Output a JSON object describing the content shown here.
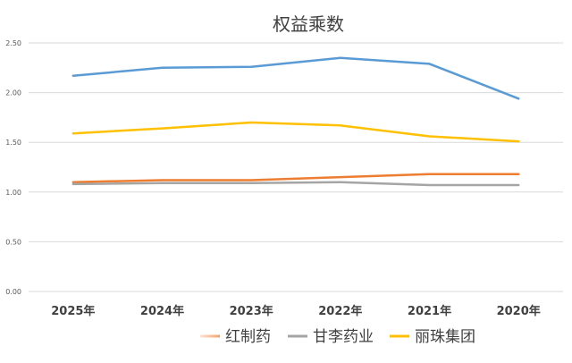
{
  "chart_data": {
    "type": "line",
    "title": "权益乘数",
    "categories": [
      "2025年",
      "2024年",
      "2023年",
      "2022年",
      "2021年",
      "2020年"
    ],
    "ylim": [
      0,
      2.5
    ],
    "yticks": [
      "0.00",
      "0.50",
      "1.00",
      "1.50",
      "2.00",
      "2.50"
    ],
    "grid": true,
    "legend_position": "bottom",
    "series": [
      {
        "name": "",
        "values": [
          2.17,
          2.25,
          2.26,
          2.35,
          2.29,
          1.94
        ],
        "color": "#5b9bd5"
      },
      {
        "name": "红制药",
        "values": [
          1.1,
          1.12,
          1.12,
          1.15,
          1.18,
          1.18
        ],
        "color": "#ed7d31"
      },
      {
        "name": "甘李药业",
        "values": [
          1.08,
          1.09,
          1.09,
          1.1,
          1.07,
          1.07
        ],
        "color": "#a5a5a5"
      },
      {
        "name": "丽珠集团",
        "values": [
          1.59,
          1.64,
          1.7,
          1.67,
          1.56,
          1.51
        ],
        "color": "#ffc000"
      }
    ]
  }
}
